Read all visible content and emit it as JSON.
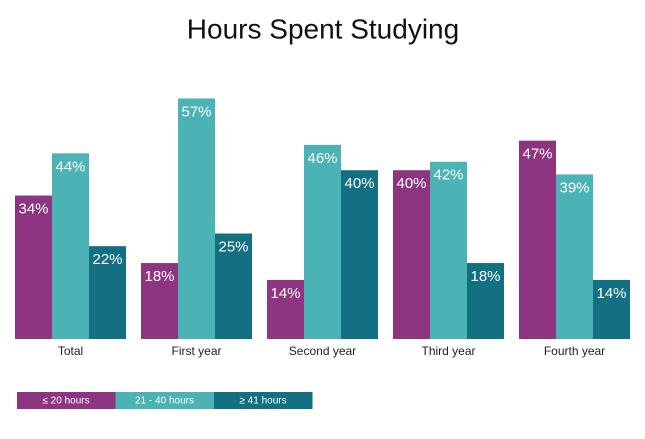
{
  "chart_data": {
    "type": "bar",
    "title": "Hours Spent Studying",
    "categories": [
      "Total",
      "First year",
      "Second year",
      "Third year",
      "Fourth year"
    ],
    "series": [
      {
        "name": "≤ 20 hours",
        "color": "#8e3582",
        "values": [
          34,
          18,
          14,
          40,
          47
        ],
        "value_labels": [
          "34%",
          "18%",
          "14%",
          "40%",
          "47%"
        ]
      },
      {
        "name": "21 - 40 hours",
        "color": "#4bb3b5",
        "values": [
          44,
          57,
          46,
          42,
          39
        ],
        "value_labels": [
          "44%",
          "57%",
          "46%",
          "42%",
          "39%"
        ]
      },
      {
        "name": "≥ 41 hours",
        "color": "#136f82",
        "values": [
          22,
          25,
          40,
          18,
          14
        ],
        "value_labels": [
          "22%",
          "25%",
          "40%",
          "18%",
          "14%"
        ]
      }
    ]
  }
}
